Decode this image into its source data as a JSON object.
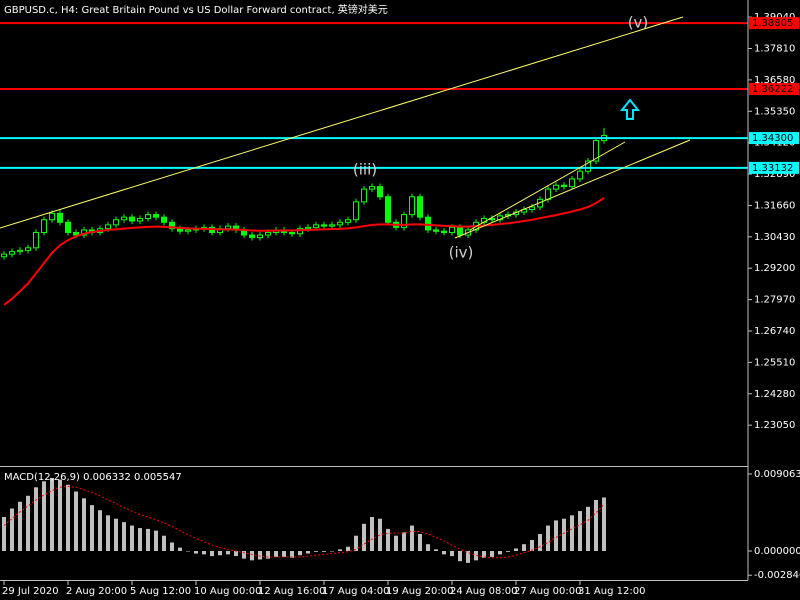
{
  "chart_data": [
    {
      "type": "candlestick",
      "title": "GBPUSD.c, H4:  Great Britain Pound vs US Dollar Forward contract, 英镑对美元",
      "categories": [
        "29 Jul 2020",
        null,
        null,
        null,
        null,
        null,
        null,
        null,
        "2 Aug 20:00",
        null,
        null,
        null,
        null,
        null,
        null,
        null,
        "5 Aug 12:00",
        null,
        null,
        null,
        null,
        null,
        null,
        null,
        "10 Aug 00:00",
        null,
        null,
        null,
        null,
        null,
        null,
        null,
        "12 Aug 16:00",
        null,
        null,
        null,
        null,
        null,
        null,
        null,
        "17 Aug 04:00",
        null,
        null,
        null,
        null,
        null,
        null,
        null,
        "19 Aug 20:00",
        null,
        null,
        null,
        null,
        null,
        null,
        null,
        "24 Aug 08:00",
        null,
        null,
        null,
        null,
        null,
        null,
        null,
        "27 Aug 00:00",
        null,
        null,
        null,
        null,
        null,
        null,
        null,
        "31 Aug 12:00",
        null,
        null,
        null
      ],
      "open": [
        1.2965,
        1.2975,
        1.2985,
        1.299,
        1.3,
        1.306,
        1.311,
        1.3135,
        1.31,
        1.306,
        1.305,
        1.307,
        1.306,
        1.3075,
        1.309,
        1.311,
        1.312,
        1.3105,
        1.3115,
        1.313,
        1.312,
        1.31,
        1.3075,
        1.3065,
        1.307,
        1.3075,
        1.308,
        1.306,
        1.3075,
        1.3085,
        1.307,
        1.305,
        1.304,
        1.305,
        1.306,
        1.307,
        1.306,
        1.3055,
        1.3075,
        1.308,
        1.309,
        1.3085,
        1.309,
        1.31,
        1.311,
        1.318,
        1.323,
        1.324,
        1.32,
        1.31,
        1.308,
        1.313,
        1.32,
        1.312,
        1.307,
        1.3065,
        1.306,
        1.308,
        1.305,
        1.307,
        1.31,
        1.3115,
        1.311,
        1.3125,
        1.313,
        1.314,
        1.315,
        1.316,
        1.319,
        1.323,
        1.3245,
        1.324,
        1.327,
        1.33,
        1.334,
        1.342
      ],
      "high": [
        1.2987,
        1.2997,
        1.3002,
        1.3012,
        1.3072,
        1.3122,
        1.3147,
        1.3147,
        1.3112,
        1.3072,
        1.3082,
        1.3082,
        1.3087,
        1.3102,
        1.3122,
        1.3132,
        1.3132,
        1.3127,
        1.3142,
        1.3142,
        1.3132,
        1.3112,
        1.3087,
        1.3082,
        1.3087,
        1.3092,
        1.3092,
        1.3087,
        1.3097,
        1.3097,
        1.3082,
        1.3062,
        1.3062,
        1.3072,
        1.3082,
        1.3082,
        1.3072,
        1.3087,
        1.3092,
        1.3102,
        1.3102,
        1.3102,
        1.3112,
        1.3122,
        1.3192,
        1.3242,
        1.3252,
        1.3252,
        1.3212,
        1.3112,
        1.3142,
        1.3212,
        1.3212,
        1.3132,
        1.3082,
        1.3077,
        1.3092,
        1.3092,
        1.3082,
        1.3112,
        1.3127,
        1.3127,
        1.3137,
        1.3142,
        1.3152,
        1.3162,
        1.3172,
        1.3202,
        1.3242,
        1.3257,
        1.3257,
        1.3282,
        1.3312,
        1.3352,
        1.3432,
        1.347
      ],
      "low": [
        1.2953,
        1.2963,
        1.2973,
        1.2978,
        1.2988,
        1.3048,
        1.3098,
        1.3088,
        1.3048,
        1.3038,
        1.3038,
        1.3048,
        1.3048,
        1.3063,
        1.3078,
        1.3098,
        1.3093,
        1.3093,
        1.3103,
        1.3108,
        1.3088,
        1.3063,
        1.3053,
        1.3053,
        1.3058,
        1.3063,
        1.3048,
        1.3048,
        1.3063,
        1.3058,
        1.3038,
        1.3028,
        1.3028,
        1.3038,
        1.3048,
        1.3048,
        1.3043,
        1.3043,
        1.3063,
        1.3068,
        1.3073,
        1.3073,
        1.3078,
        1.3088,
        1.3098,
        1.3168,
        1.3218,
        1.3188,
        1.3088,
        1.3068,
        1.3068,
        1.3118,
        1.3108,
        1.3058,
        1.3053,
        1.3048,
        1.3048,
        1.3038,
        1.3038,
        1.3058,
        1.3088,
        1.3098,
        1.3098,
        1.3113,
        1.3118,
        1.3128,
        1.3138,
        1.3148,
        1.3178,
        1.3218,
        1.3228,
        1.3228,
        1.3258,
        1.3288,
        1.3328,
        1.3408
      ],
      "close": [
        1.2975,
        1.2985,
        1.299,
        1.3,
        1.306,
        1.311,
        1.3135,
        1.31,
        1.306,
        1.305,
        1.307,
        1.306,
        1.3075,
        1.309,
        1.311,
        1.312,
        1.3105,
        1.3115,
        1.313,
        1.312,
        1.31,
        1.3075,
        1.3065,
        1.307,
        1.3075,
        1.308,
        1.306,
        1.3075,
        1.3085,
        1.307,
        1.305,
        1.304,
        1.305,
        1.306,
        1.307,
        1.306,
        1.3055,
        1.3075,
        1.308,
        1.309,
        1.3085,
        1.309,
        1.31,
        1.311,
        1.318,
        1.323,
        1.324,
        1.32,
        1.31,
        1.308,
        1.313,
        1.32,
        1.312,
        1.307,
        1.3065,
        1.306,
        1.308,
        1.305,
        1.307,
        1.31,
        1.3115,
        1.311,
        1.3125,
        1.313,
        1.314,
        1.315,
        1.316,
        1.319,
        1.323,
        1.3245,
        1.324,
        1.327,
        1.33,
        1.334,
        1.342,
        1.344
      ],
      "color": "#00ff00",
      "overlay": {
        "color": "#ff0000",
        "values": [
          1.2776,
          1.28,
          1.283,
          1.286,
          1.29,
          1.294,
          1.298,
          1.301,
          1.303,
          1.3045,
          1.3055,
          1.3062,
          1.3066,
          1.307,
          1.3072,
          1.3075,
          1.3078,
          1.308,
          1.3082,
          1.3083,
          1.3082,
          1.308,
          1.3078,
          1.3076,
          1.3075,
          1.3074,
          1.3073,
          1.3072,
          1.3072,
          1.3071,
          1.307,
          1.3068,
          1.3067,
          1.3067,
          1.3068,
          1.3068,
          1.3068,
          1.3069,
          1.307,
          1.3071,
          1.3072,
          1.3073,
          1.3074,
          1.3076,
          1.308,
          1.3085,
          1.309,
          1.3092,
          1.3092,
          1.309,
          1.309,
          1.3092,
          1.3092,
          1.309,
          1.3088,
          1.3086,
          1.3085,
          1.3083,
          1.3083,
          1.3085,
          1.3087,
          1.309,
          1.3093,
          1.3096,
          1.31,
          1.3105,
          1.311,
          1.3116,
          1.3122,
          1.3128,
          1.3135,
          1.3142,
          1.315,
          1.316,
          1.3175,
          1.3195
        ]
      },
      "levels": [
        {
          "value": 1.38805,
          "label": "1.38805",
          "color": "#ff0000"
        },
        {
          "value": 1.36222,
          "label": "1.36222",
          "color": "#ff0000"
        },
        {
          "value": 1.343,
          "label": "1.34300",
          "color": "#00ffff"
        },
        {
          "value": 1.33132,
          "label": "1.33132",
          "color": "#00ffff"
        }
      ],
      "annotations": [
        "(iii)",
        "(iv)",
        "(v)"
      ],
      "ylim": [
        1.2145,
        1.3971
      ],
      "yticks": [
        {
          "value": 1.3904,
          "label": "1.39040"
        },
        {
          "value": 1.3781,
          "label": "1.37810"
        },
        {
          "value": 1.3658,
          "label": "1.36580"
        },
        {
          "value": 1.3535,
          "label": "1.35350"
        },
        {
          "value": 1.3412,
          "label": "1.34120"
        },
        {
          "value": 1.3289,
          "label": "1.32890"
        },
        {
          "value": 1.3166,
          "label": "1.31660"
        },
        {
          "value": 1.3043,
          "label": "1.30430"
        },
        {
          "value": 1.292,
          "label": "1.29200"
        },
        {
          "value": 1.2797,
          "label": "1.27970"
        },
        {
          "value": 1.2674,
          "label": "1.26740"
        },
        {
          "value": 1.2551,
          "label": "1.25510"
        },
        {
          "value": 1.2428,
          "label": "1.24280"
        },
        {
          "value": 1.2305,
          "label": "1.23050"
        }
      ]
    },
    {
      "type": "macd",
      "title": "MACD(12,26,9) 0.006332 0.005547",
      "histogram": {
        "color": "#c0c0c0",
        "values": [
          0.004,
          0.005,
          0.0058,
          0.0065,
          0.0075,
          0.0082,
          0.0086,
          0.0084,
          0.0078,
          0.007,
          0.0062,
          0.0054,
          0.0048,
          0.0042,
          0.0038,
          0.0034,
          0.003,
          0.0027,
          0.0026,
          0.0024,
          0.0018,
          0.001,
          0.0004,
          0.0,
          -0.0003,
          -0.0004,
          -0.0006,
          -0.0005,
          -0.0004,
          -0.0006,
          -0.0009,
          -0.0011,
          -0.001,
          -0.0009,
          -0.0007,
          -0.0007,
          -0.0008,
          -0.0005,
          -0.0003,
          -0.0001,
          -0.0001,
          0.0,
          0.0002,
          0.0005,
          0.0018,
          0.0032,
          0.004,
          0.0038,
          0.0026,
          0.0018,
          0.0022,
          0.003,
          0.002,
          0.0008,
          0.0002,
          -0.0004,
          -0.0006,
          -0.0012,
          -0.0014,
          -0.0011,
          -0.0008,
          -0.0007,
          -0.0004,
          -0.0001,
          0.0003,
          0.0008,
          0.0013,
          0.002,
          0.003,
          0.0036,
          0.0038,
          0.0042,
          0.0047,
          0.0052,
          0.006,
          0.0063
        ]
      },
      "signal": {
        "color": "#ff0000",
        "values": [
          0.003,
          0.0038,
          0.0046,
          0.0053,
          0.006,
          0.0066,
          0.0071,
          0.0075,
          0.0076,
          0.0075,
          0.0072,
          0.0069,
          0.0065,
          0.006,
          0.0056,
          0.0051,
          0.0047,
          0.0043,
          0.004,
          0.0037,
          0.0033,
          0.0029,
          0.0024,
          0.0019,
          0.0015,
          0.0011,
          0.0007,
          0.0004,
          0.0002,
          0.0,
          -0.0002,
          -0.0004,
          -0.0006,
          -0.0007,
          -0.0007,
          -0.0007,
          -0.0007,
          -0.0007,
          -0.0006,
          -0.0005,
          -0.0004,
          -0.0003,
          -0.0002,
          -0.0001,
          0.0002,
          0.0008,
          0.0014,
          0.0019,
          0.0021,
          0.0021,
          0.0021,
          0.0023,
          0.0023,
          0.002,
          0.0016,
          0.0012,
          0.0007,
          0.0002,
          -0.0002,
          -0.0005,
          -0.0007,
          -0.0008,
          -0.0008,
          -0.0007,
          -0.0005,
          -0.0002,
          0.0001,
          0.0005,
          0.001,
          0.0016,
          0.0021,
          0.0026,
          0.0031,
          0.0036,
          0.0045,
          0.0055
        ]
      },
      "ylim": [
        -0.003413,
        0.009887
      ],
      "yticks": [
        {
          "value": 0.009063,
          "label": "0.009063"
        },
        {
          "value": 0,
          "label": "0.000000"
        },
        {
          "value": -0.002846,
          "label": "-0.002846"
        }
      ]
    }
  ]
}
